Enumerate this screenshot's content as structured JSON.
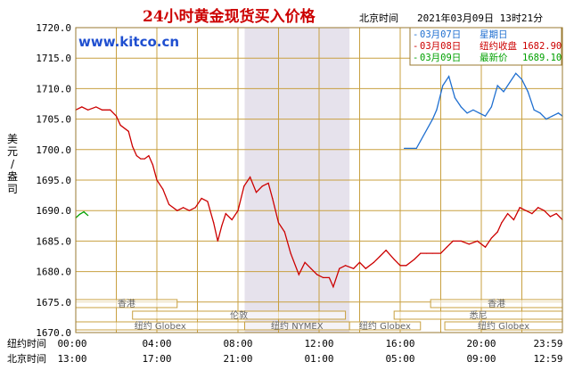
{
  "header": {
    "title": "24小时黄金现货买入价格",
    "location": "北京时间",
    "datetime": "2021年03月09日 13时21分",
    "watermark": "www.kitco.cn"
  },
  "legend": [
    {
      "date": "03月07日",
      "label": "星期日",
      "value": "",
      "color": "#1f6fd0"
    },
    {
      "date": "03月08日",
      "label": "纽约收盘",
      "value": "1682.90",
      "color": "#cc0000"
    },
    {
      "date": "03月09日",
      "label": "最新价",
      "value": "1689.10",
      "color": "#00a000"
    }
  ],
  "axes": {
    "ylabel": "美元/盎司",
    "yticks": [
      "1720.0",
      "1715.0",
      "1710.0",
      "1705.0",
      "1700.0",
      "1695.0",
      "1690.0",
      "1685.0",
      "1680.0",
      "1675.0",
      "1670.0"
    ],
    "row1_label": "纽约时间",
    "row2_label": "北京时间",
    "row1_ticks": [
      "00:00",
      "04:00",
      "08:00",
      "12:00",
      "16:00",
      "20:00",
      "23:59"
    ],
    "row2_ticks": [
      "13:00",
      "17:00",
      "21:00",
      "01:00",
      "05:00",
      "09:00",
      "12:59"
    ]
  },
  "markets": [
    {
      "name": "香港"
    },
    {
      "name": "香港"
    },
    {
      "name": "伦敦"
    },
    {
      "name": "悉尼"
    },
    {
      "name": "纽约 Globex"
    },
    {
      "name": "纽约 NYMEX"
    },
    {
      "name": "纽约 Globex"
    },
    {
      "name": "纽约 Globex"
    }
  ],
  "colors": {
    "grid": "#c8a040",
    "frame": "#9a7a30",
    "nymex_band": "#e6e2ec",
    "red": "#cc0000",
    "blue": "#1f6fd0",
    "green": "#00a000",
    "axis_text": "#000000",
    "watermark": "#1f4fd0"
  },
  "chart_data": {
    "type": "line",
    "title": "24小时黄金现货买入价格",
    "xlabel": "纽约时间",
    "ylabel": "美元/盎司",
    "ylim": [
      1670,
      1720
    ],
    "xlim": [
      0,
      24
    ],
    "x_unit": "hours (NY time)",
    "grid": true,
    "legend": "top-right",
    "series": [
      {
        "name": "03月08日",
        "color": "#cc0000",
        "x": [
          0,
          0.3,
          0.6,
          1,
          1.3,
          1.7,
          2,
          2.2,
          2.6,
          2.8,
          3,
          3.2,
          3.4,
          3.6,
          3.8,
          4,
          4.3,
          4.6,
          5,
          5.3,
          5.6,
          5.9,
          6.2,
          6.5,
          6.8,
          7,
          7.2,
          7.4,
          7.7,
          8,
          8.3,
          8.6,
          8.9,
          9.2,
          9.5,
          9.7,
          10,
          10.3,
          10.6,
          11,
          11.3,
          11.6,
          11.9,
          12.2,
          12.5,
          12.7,
          13,
          13.3,
          13.7,
          14,
          14.3,
          14.7,
          15,
          15.3,
          15.7,
          16,
          16.3,
          16.7,
          17,
          17.3,
          17.6,
          18,
          18.3,
          18.6,
          19,
          19.4,
          19.8,
          20.2,
          20.5,
          20.8,
          21,
          21.3,
          21.6,
          21.9,
          22.2,
          22.5,
          22.8,
          23.1,
          23.4,
          23.7,
          24
        ],
        "y": [
          1706.5,
          1707,
          1706.5,
          1707,
          1706.5,
          1706.5,
          1705.5,
          1704,
          1703,
          1700.5,
          1699,
          1698.5,
          1698.5,
          1699,
          1697.5,
          1695,
          1693.5,
          1691,
          1690,
          1690.5,
          1690,
          1690.5,
          1692,
          1691.5,
          1688,
          1685,
          1687.5,
          1689.5,
          1688.5,
          1690,
          1694,
          1695.5,
          1693,
          1694,
          1694.5,
          1692,
          1688,
          1686.5,
          1683,
          1679.5,
          1681.5,
          1680.5,
          1679.5,
          1679,
          1679,
          1677.5,
          1680.5,
          1681,
          1680.5,
          1681.5,
          1680.5,
          1681.5,
          1682.5,
          1683.5,
          1682,
          1681,
          1681,
          1682,
          1683,
          1683,
          1683,
          1683,
          1684,
          1685,
          1685,
          1684.5,
          1685,
          1684,
          1685.5,
          1686.5,
          1688,
          1689.5,
          1688.5,
          1690.5,
          1690,
          1689.5,
          1690.5,
          1690,
          1689,
          1689.5,
          1688.5
        ]
      },
      {
        "name": "03月07日",
        "color": "#1f6fd0",
        "x": [
          16.2,
          16.8,
          17.6,
          17.8,
          18.1,
          18.4,
          18.7,
          19.0,
          19.3,
          19.6,
          19.9,
          20.2,
          20.5,
          20.8,
          21.1,
          21.4,
          21.7,
          22.0,
          22.3,
          22.6,
          22.9,
          23.2,
          23.5,
          23.8,
          24
        ],
        "y": [
          1700.2,
          1700.2,
          1705,
          1706.5,
          1710.5,
          1712,
          1708.5,
          1707,
          1706,
          1706.5,
          1706,
          1705.5,
          1707,
          1710.5,
          1709.5,
          1711,
          1712.5,
          1711.5,
          1709.5,
          1706.5,
          1706,
          1705,
          1705.5,
          1706,
          1705.5
        ]
      },
      {
        "name": "03月09日",
        "color": "#00a000",
        "x": [
          0,
          0.2,
          0.4,
          0.6
        ],
        "y": [
          1688.8,
          1689.4,
          1689.8,
          1689.2
        ]
      }
    ]
  }
}
